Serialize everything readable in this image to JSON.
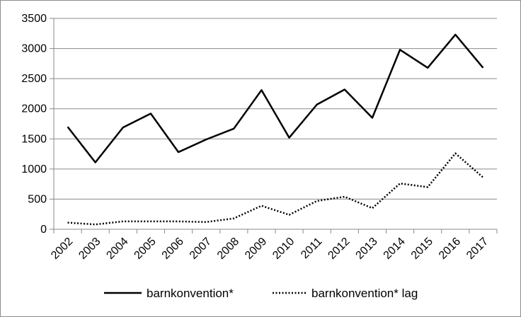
{
  "chart_data": {
    "type": "line",
    "title": "",
    "xlabel": "",
    "ylabel": "",
    "categories": [
      "2002",
      "2003",
      "2004",
      "2005",
      "2006",
      "2007",
      "2008",
      "2009",
      "2010",
      "2011",
      "2012",
      "2013",
      "2014",
      "2015",
      "2016",
      "2017"
    ],
    "ylim": [
      0,
      3500
    ],
    "yticks": [
      "0",
      "500",
      "1000",
      "1500",
      "2000",
      "2500",
      "3000",
      "3500"
    ],
    "grid": true,
    "legend_position": "bottom",
    "series": [
      {
        "name": "barnkonvention*",
        "style": "solid",
        "color": "#000000",
        "values": [
          1700,
          1110,
          1690,
          1920,
          1280,
          1490,
          1670,
          2310,
          1520,
          2070,
          2320,
          1850,
          2980,
          2680,
          3230,
          2680
        ]
      },
      {
        "name": "barnkonvention* lag",
        "style": "dotted",
        "color": "#000000",
        "values": [
          110,
          80,
          130,
          130,
          130,
          120,
          180,
          390,
          240,
          470,
          540,
          350,
          760,
          700,
          1260,
          860
        ]
      }
    ]
  }
}
